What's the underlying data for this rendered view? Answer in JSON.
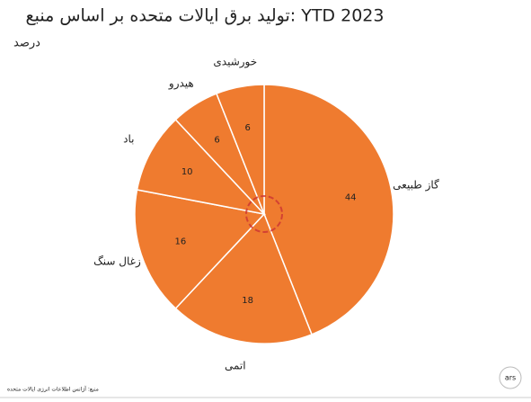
{
  "chart_data": {
    "type": "pie",
    "title": "تولید برق ایالات متحده بر اساس منبع: YTD 2023",
    "subtitle": "درصد",
    "categories": [
      "گاز طبیعی",
      "اتمی",
      "زغال سنگ",
      "باد",
      "هیدرو",
      "خورشیدی"
    ],
    "values": [
      44,
      18,
      16,
      10,
      6,
      6
    ],
    "color": "#ef7b2f",
    "source": "منبع: آژانس اطلاعات انرژی ایالات متحده",
    "brand": "ars"
  }
}
